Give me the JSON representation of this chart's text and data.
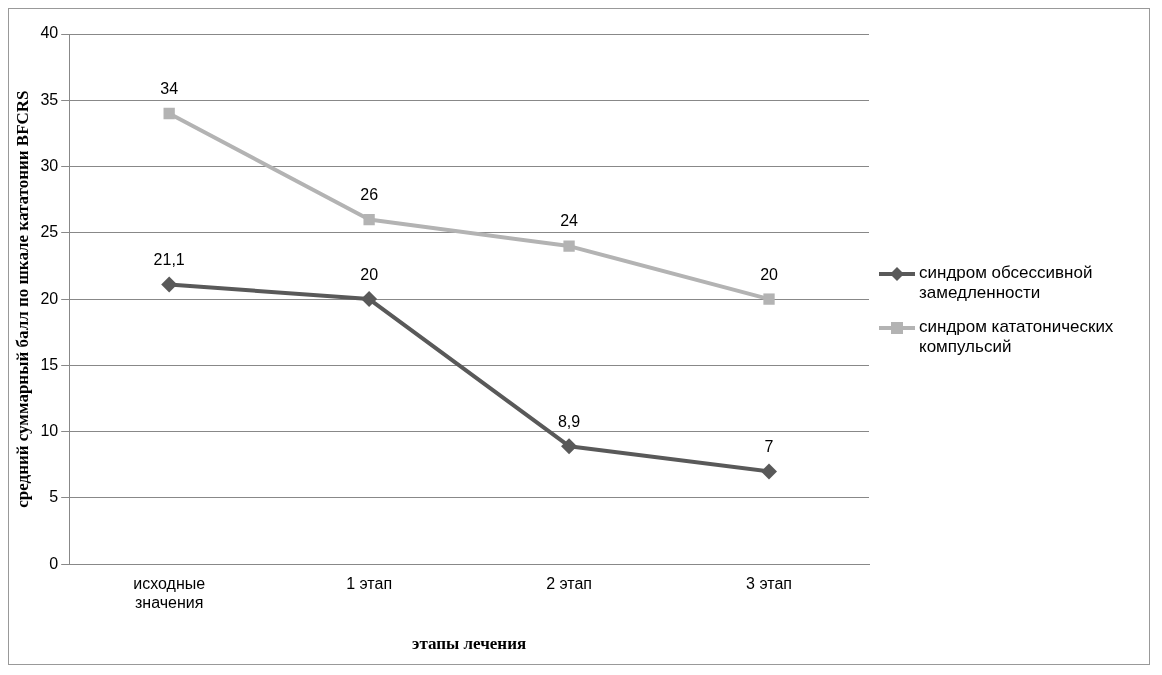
{
  "chart_data": {
    "type": "line",
    "xlabel": "этапы лечения",
    "ylabel": "средний суммарный балл по шкале кататонии BFCRS",
    "categories": [
      "исходные значения",
      "1 этап",
      "2 этап",
      "3 этап"
    ],
    "series": [
      {
        "name": "синдром обсессивной замедленности",
        "color": "#595959",
        "marker": "diamond",
        "values": [
          21.1,
          20,
          8.9,
          7
        ],
        "value_labels": [
          "21,1",
          "20",
          "8,9",
          "7"
        ]
      },
      {
        "name": "синдром кататонических компульсий",
        "color": "#b3b3b3",
        "marker": "square",
        "values": [
          34,
          26,
          24,
          20
        ],
        "value_labels": [
          "34",
          "26",
          "24",
          "20"
        ]
      }
    ],
    "ylim": [
      0,
      40
    ],
    "yticks": [
      0,
      5,
      10,
      15,
      20,
      25,
      30,
      35,
      40
    ],
    "grid": "y",
    "legend": "right"
  }
}
